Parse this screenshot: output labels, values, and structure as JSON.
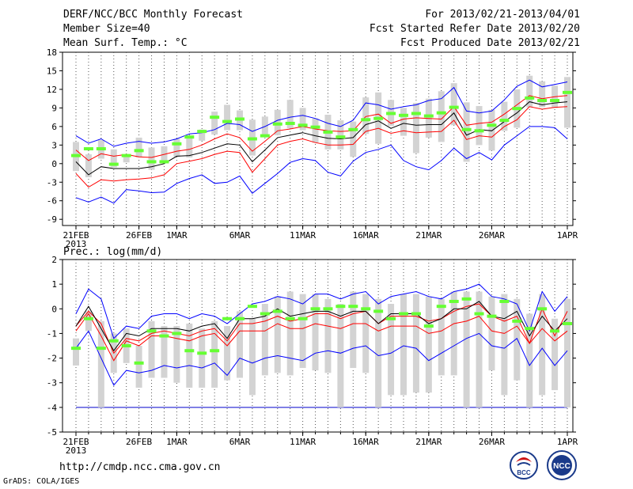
{
  "header": {
    "left_line1": "DERF/NCC/BCC Monthly Forecast",
    "left_line2": "Member Size=40",
    "left_line3": "Mean Surf. Temp.: °C",
    "right_line1": "For 2013/02/21-2013/04/01",
    "right_line2": "Fcst Started Refer Date 2013/02/20",
    "right_line3": "Fcst Produced Date 2013/02/21"
  },
  "footer": {
    "url": "http://cmdp.ncc.cma.gov.cn",
    "credit": "GrADS: COLA/IGES"
  },
  "logos": {
    "bcc_text": "BCC",
    "ncc_text": "NCC"
  },
  "colors": {
    "envelope": "#0000ff",
    "spread": "#ff0000",
    "mean": "#000000",
    "median": "#66ff33",
    "box": "#d3d3d3",
    "floor": "#0000cc"
  },
  "chart_data": [
    {
      "type": "ensemble-box",
      "title": "Mean Surf. Temp.: °C",
      "ylabel": "°C",
      "ylim": [
        -10,
        18
      ],
      "yticks": [
        -9,
        -6,
        -3,
        0,
        3,
        6,
        9,
        12,
        15,
        18
      ],
      "xtick_labels": [
        {
          "day": 0,
          "label": "21FEB",
          "sub": "2013"
        },
        {
          "day": 5,
          "label": "26FEB"
        },
        {
          "day": 8,
          "label": "1MAR"
        },
        {
          "day": 13,
          "label": "6MAR"
        },
        {
          "day": 18,
          "label": "11MAR"
        },
        {
          "day": 23,
          "label": "16MAR"
        },
        {
          "day": 28,
          "label": "21MAR"
        },
        {
          "day": 33,
          "label": "26MAR"
        },
        {
          "day": 39,
          "label": "1APR"
        }
      ],
      "days": 40,
      "blue_upper": [
        4.5,
        3.3,
        4,
        2.8,
        3.3,
        3.6,
        3.3,
        3.5,
        4,
        4.8,
        5,
        5.5,
        6.5,
        6.3,
        5.2,
        6,
        7,
        7.5,
        7.8,
        7.3,
        6.5,
        6,
        7,
        9.8,
        9.5,
        8.8,
        9.2,
        9.5,
        10.2,
        10.5,
        12.3,
        8.5,
        8.2,
        8.5,
        10.3,
        12.5,
        13.5,
        12.4,
        12.8,
        13.2
      ],
      "red_upper": [
        2.2,
        0.5,
        1.6,
        1.2,
        1.5,
        1.1,
        1,
        1.5,
        2,
        2.3,
        3,
        4,
        4.8,
        4.2,
        2,
        3.6,
        5.3,
        5.6,
        6,
        5.6,
        5.3,
        5.2,
        5.3,
        7.6,
        8,
        6.5,
        7.2,
        7.4,
        7.3,
        7.2,
        9.2,
        6.2,
        6.5,
        6.7,
        8,
        9.5,
        11,
        10.5,
        10.8,
        11
      ],
      "mean": [
        0.3,
        -1.8,
        -0.5,
        -0.8,
        -0.8,
        -0.8,
        -0.5,
        0,
        1.2,
        1.3,
        1.8,
        2.5,
        3.2,
        3,
        0.3,
        2.2,
        4.2,
        4.6,
        5,
        4.5,
        4.1,
        4,
        4.2,
        6.3,
        6.9,
        5.7,
        6.5,
        6.2,
        6.3,
        6.3,
        8.2,
        4.6,
        5.5,
        5.3,
        6.8,
        8.2,
        10,
        9.5,
        9.8,
        10
      ],
      "red_lower": [
        -1.6,
        -3.8,
        -2.6,
        -2.8,
        -2.6,
        -2.5,
        -2.3,
        -1.8,
        0,
        0.4,
        0.8,
        1.5,
        2,
        1.8,
        -1.4,
        0.8,
        3,
        3.6,
        4,
        3.4,
        3,
        3,
        3.1,
        5.2,
        5.7,
        4.9,
        5.3,
        5,
        5.1,
        5.2,
        7,
        3.9,
        4.5,
        4.3,
        6,
        7.1,
        9.2,
        8.8,
        9.1,
        9.2
      ],
      "blue_lower": [
        -5.5,
        -6.2,
        -5.4,
        -6.4,
        -4.2,
        -4.4,
        -4.7,
        -4.6,
        -3.2,
        -2.4,
        -1.8,
        -3.2,
        -3,
        -2,
        -4.8,
        -3.2,
        -1.6,
        0.2,
        0.8,
        0.5,
        -1.4,
        -2,
        0.4,
        1.8,
        2.3,
        3,
        0.5,
        -0.5,
        -1,
        0.5,
        2.5,
        0.8,
        1.8,
        0.6,
        3,
        4.5,
        6,
        6,
        5.8,
        4
      ],
      "box_high": [
        3.5,
        1.5,
        3.8,
        2.3,
        1.4,
        4.2,
        2.6,
        2.8,
        4,
        4.4,
        5.5,
        8.4,
        9.5,
        8.6,
        7.1,
        7.6,
        8.7,
        10.3,
        9,
        7.3,
        7.9,
        7,
        6.8,
        10.7,
        11.5,
        10.3,
        9,
        9.8,
        10.5,
        11.7,
        13,
        9.9,
        9.3,
        8.7,
        10,
        12,
        14.2,
        13.3,
        12.6,
        14
      ],
      "box_low": [
        -1.2,
        -2.2,
        0.8,
        -0.6,
        0.2,
        1,
        -1,
        0.3,
        1.1,
        1,
        3.7,
        4.7,
        5.4,
        5.4,
        1.3,
        4.6,
        4.6,
        5.7,
        5.4,
        3.4,
        2.3,
        2.3,
        1.1,
        4.8,
        3.2,
        6.1,
        4.5,
        1.7,
        4.2,
        3.5,
        6.2,
        0.3,
        3,
        2.1,
        5.3,
        5.8,
        9.1,
        9.1,
        9,
        5.8
      ],
      "median": [
        1.3,
        2.4,
        2.4,
        -0.1,
        1.3,
        2.1,
        0.3,
        0.3,
        3.2,
        4.3,
        5.2,
        7.5,
        6.8,
        7.2,
        4,
        4.5,
        6.4,
        6.5,
        6.2,
        5.9,
        5.1,
        4.3,
        5.5,
        7.1,
        7.3,
        8.1,
        7.8,
        8.1,
        7.7,
        8.2,
        9.1,
        5.5,
        5.3,
        6.2,
        7,
        8.9,
        10.6,
        10.2,
        10.2,
        11.5
      ]
    },
    {
      "type": "ensemble-box",
      "title": "Prec.: log(mm/d)",
      "ylabel": "log(mm/d)",
      "ylim": [
        -5,
        2
      ],
      "yticks": [
        -5,
        -4,
        -3,
        -2,
        -1,
        0,
        1,
        2
      ],
      "xtick_labels": [
        {
          "day": 0,
          "label": "21FEB",
          "sub": "2013"
        },
        {
          "day": 5,
          "label": "26FEB"
        },
        {
          "day": 8,
          "label": "1MAR"
        },
        {
          "day": 13,
          "label": "6MAR"
        },
        {
          "day": 18,
          "label": "11MAR"
        },
        {
          "day": 23,
          "label": "16MAR"
        },
        {
          "day": 28,
          "label": "21MAR"
        },
        {
          "day": 33,
          "label": "26MAR"
        },
        {
          "day": 39,
          "label": "1APR"
        }
      ],
      "days": 40,
      "blue_upper": [
        -0.2,
        0.8,
        0.4,
        -1.2,
        -0.7,
        -0.8,
        -0.3,
        -0.2,
        -0.2,
        -0.4,
        -0.2,
        -0.3,
        -0.6,
        -0.2,
        0.2,
        0.3,
        0.5,
        0.4,
        0.2,
        0.6,
        0.6,
        0.4,
        0.6,
        0.7,
        0.2,
        0.5,
        0.6,
        0.7,
        0.5,
        0.4,
        0.7,
        0.8,
        1,
        0.5,
        0.4,
        0.2,
        -0.9,
        0.7,
        -0.1,
        0.5
      ],
      "red_upper": [
        -0.7,
        -0.1,
        -0.6,
        -1.8,
        -1.2,
        -1.3,
        -1,
        -0.9,
        -1,
        -1.1,
        -0.9,
        -0.8,
        -1.3,
        -0.6,
        -0.6,
        -0.5,
        -0.3,
        -0.5,
        -0.4,
        -0.2,
        -0.2,
        -0.4,
        -0.2,
        -0.1,
        -0.6,
        -0.3,
        -0.3,
        -0.3,
        -0.5,
        -0.4,
        -0.1,
        0.1,
        0.2,
        -0.3,
        -0.5,
        -0.3,
        -1.4,
        0,
        -1.1,
        -0.1
      ],
      "mean": [
        -0.7,
        0.1,
        -0.8,
        -1.7,
        -1,
        -1.1,
        -0.8,
        -0.8,
        -0.8,
        -0.9,
        -0.7,
        -0.6,
        -1.2,
        -0.4,
        -0.4,
        -0.3,
        0,
        -0.3,
        -0.2,
        -0.1,
        -0.1,
        -0.3,
        -0.1,
        -0.1,
        -0.6,
        -0.2,
        -0.2,
        -0.2,
        -0.6,
        -0.4,
        0,
        0,
        0.3,
        -0.3,
        -0.4,
        -0.1,
        -1.1,
        -0.3,
        -0.9,
        -0.4
      ],
      "red_lower": [
        -0.9,
        -0.2,
        -1.1,
        -2.1,
        -1.3,
        -1.5,
        -1.1,
        -1.1,
        -1.2,
        -1.3,
        -1.1,
        -1,
        -1.5,
        -0.9,
        -0.9,
        -0.9,
        -0.6,
        -0.8,
        -0.8,
        -0.6,
        -0.7,
        -0.8,
        -0.6,
        -0.6,
        -0.9,
        -0.7,
        -0.7,
        -0.7,
        -1,
        -0.9,
        -0.6,
        -0.5,
        -0.3,
        -0.9,
        -1,
        -0.7,
        -1.4,
        -0.8,
        -1.3,
        -0.9
      ],
      "blue_lower": [
        -1.6,
        -0.9,
        -2,
        -3.1,
        -2.5,
        -2.6,
        -2.5,
        -2.3,
        -2.4,
        -2.3,
        -2.4,
        -2.2,
        -2.7,
        -2,
        -2.2,
        -2,
        -1.9,
        -2,
        -2.1,
        -1.8,
        -1.7,
        -1.8,
        -1.6,
        -1.5,
        -1.9,
        -1.8,
        -1.5,
        -1.6,
        -2.1,
        -1.8,
        -1.5,
        -1.2,
        -1,
        -1.5,
        -1.6,
        -1.2,
        -2.3,
        -1.6,
        -2.3,
        -1.7
      ],
      "box_high": [
        -1.2,
        -0.1,
        -0.5,
        -1,
        -0.8,
        -1.5,
        -0.5,
        -0.7,
        -0.7,
        -0.6,
        -0.8,
        -0.5,
        -0.7,
        -0.1,
        -0.4,
        0.2,
        0.5,
        0.7,
        0.6,
        0.6,
        0.4,
        0.2,
        0.7,
        0.6,
        0.4,
        0.2,
        0.6,
        0.6,
        0.5,
        0.4,
        0.7,
        0.7,
        0.7,
        0.5,
        0.6,
        0.4,
        -0.2,
        0.6,
        -0.4,
        0.4
      ],
      "box_low": [
        -2.3,
        -0.9,
        -4,
        -2.6,
        -2.2,
        -3.2,
        -2.8,
        -2.8,
        -3,
        -3.2,
        -3.2,
        -3.2,
        -2.9,
        -2.8,
        -3.5,
        -2.7,
        -2.6,
        -2.7,
        -2.4,
        -2.5,
        -2.6,
        -4,
        -2.4,
        -2.6,
        -4,
        -3.5,
        -3.5,
        -3.4,
        -3.4,
        -2.7,
        -2.7,
        -4,
        -4,
        -2.5,
        -3.5,
        -2.9,
        -4,
        -3.5,
        -3.3,
        -4
      ],
      "median": [
        -1.6,
        -0.4,
        -1.6,
        -1.3,
        -1.5,
        -2.2,
        -0.9,
        -1.1,
        -1,
        -1.7,
        -1.8,
        -1.7,
        -0.4,
        -0.4,
        0.1,
        -0.2,
        -0.1,
        -0.4,
        -0.4,
        0,
        0,
        0.1,
        0.1,
        0,
        -0.1,
        -0.4,
        -0.2,
        -0.2,
        -0.7,
        0.1,
        0.3,
        0.4,
        -0.2,
        -0.3,
        0.3,
        -0.5,
        -0.8,
        0,
        -0.9,
        -0.6
      ],
      "floor": -4
    }
  ]
}
